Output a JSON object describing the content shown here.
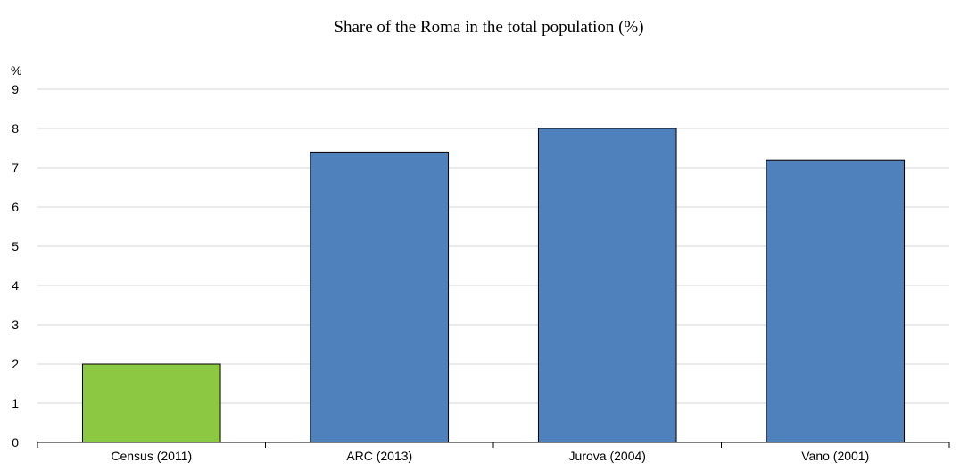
{
  "chart_data": {
    "type": "bar",
    "title": "Share of the Roma in the total population (%)",
    "ylabel": "%",
    "xlabel": "",
    "categories": [
      "Census (2011)",
      "ARC (2013)",
      "Jurova (2004)",
      "Vano (2001)"
    ],
    "values": [
      2.0,
      7.4,
      8.0,
      7.2
    ],
    "ylim": [
      0,
      9
    ],
    "yticks": [
      "0",
      "1",
      "2",
      "3",
      "4",
      "5",
      "6",
      "7",
      "8",
      "9"
    ],
    "grid": true,
    "colors": {
      "highlight": "#8cc841",
      "default": "#4f81bd"
    },
    "highlight_index": 0
  }
}
